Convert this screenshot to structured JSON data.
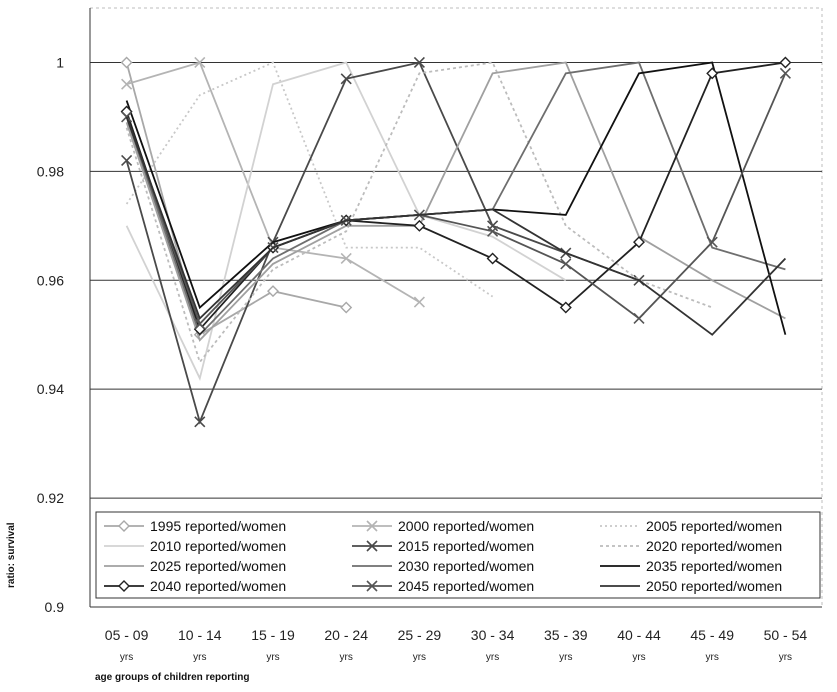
{
  "chart_data": {
    "type": "line",
    "xlabel": "age groups of children reporting",
    "ylabel": "ratio: survival",
    "ylim": [
      0.9,
      1.01
    ],
    "yticks": [
      "0.9",
      "0.92",
      "0.94",
      "0.96",
      "0.98",
      "1"
    ],
    "grid": true,
    "legend_position": "bottom",
    "categories": [
      "05 - 09",
      "10 - 14",
      "15 - 19",
      "20 - 24",
      "25 - 29",
      "30 - 34",
      "35 - 39",
      "40 - 44",
      "45 - 49",
      "50 - 54"
    ],
    "category_sublabel": "yrs",
    "series": [
      {
        "name": "1995 reported/women",
        "color": "#a8a8a8",
        "dash": "",
        "marker": "diamond",
        "values": [
          1.0,
          0.95,
          0.958,
          0.955,
          null,
          null,
          null,
          null,
          null,
          null
        ]
      },
      {
        "name": "2000 reported/women",
        "color": "#b4b4b4",
        "dash": "",
        "marker": "x",
        "values": [
          0.996,
          1.0,
          0.966,
          0.964,
          0.956,
          null,
          null,
          null,
          null,
          null
        ]
      },
      {
        "name": "2005 reported/women",
        "color": "#c8c8c8",
        "dash": "2,3",
        "marker": "none",
        "values": [
          0.974,
          0.994,
          1.0,
          0.966,
          0.966,
          0.957,
          null,
          null,
          null,
          null
        ]
      },
      {
        "name": "2010 reported/women",
        "color": "#d2d2d2",
        "dash": "",
        "marker": "none",
        "values": [
          0.97,
          0.942,
          0.996,
          1.0,
          0.972,
          0.968,
          0.96,
          null,
          null,
          null
        ]
      },
      {
        "name": "2015 reported/women",
        "color": "#4a4a4a",
        "dash": "",
        "marker": "x",
        "values": [
          0.982,
          0.934,
          0.967,
          0.997,
          1.0,
          0.97,
          0.965,
          0.96,
          null,
          null
        ]
      },
      {
        "name": "2020 reported/women",
        "color": "#bcbcbc",
        "dash": "3,3",
        "marker": "none",
        "values": [
          0.988,
          0.945,
          0.962,
          0.969,
          0.998,
          1.0,
          0.97,
          0.96,
          0.955,
          null
        ]
      },
      {
        "name": "2025 reported/women",
        "color": "#a0a0a0",
        "dash": "",
        "marker": "none",
        "values": [
          0.989,
          0.949,
          0.963,
          0.97,
          0.97,
          0.998,
          1.0,
          0.968,
          0.96,
          0.953
        ]
      },
      {
        "name": "2030 reported/women",
        "color": "#6e6e6e",
        "dash": "",
        "marker": "none",
        "values": [
          0.99,
          0.95,
          0.964,
          0.971,
          0.972,
          0.973,
          0.998,
          1.0,
          0.966,
          0.962
        ]
      },
      {
        "name": "2035 reported/women",
        "color": "#111111",
        "dash": "",
        "marker": "none",
        "values": [
          0.993,
          0.955,
          0.967,
          0.971,
          0.972,
          0.973,
          0.972,
          0.998,
          1.0,
          0.95
        ]
      },
      {
        "name": "2040 reported/women",
        "color": "#222222",
        "dash": "",
        "marker": "diamond",
        "values": [
          0.991,
          0.951,
          0.966,
          0.971,
          0.97,
          0.964,
          0.955,
          0.967,
          0.998,
          1.0
        ]
      },
      {
        "name": "2045 reported/women",
        "color": "#555555",
        "dash": "",
        "marker": "x",
        "values": [
          0.99,
          0.952,
          0.966,
          0.971,
          0.972,
          0.969,
          0.963,
          0.953,
          0.967,
          0.998
        ]
      },
      {
        "name": "2050 reported/women",
        "color": "#333333",
        "dash": "",
        "marker": "none",
        "values": [
          0.99,
          0.953,
          0.966,
          0.971,
          0.972,
          0.973,
          0.965,
          0.96,
          0.95,
          0.964
        ]
      }
    ]
  }
}
